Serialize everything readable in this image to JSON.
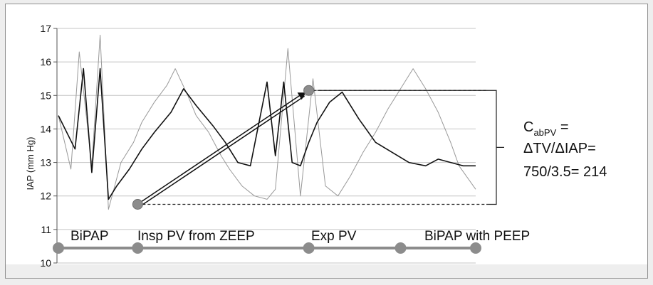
{
  "chart_data": {
    "type": "line",
    "ylabel": "IAP (mm Hg)",
    "ylim": [
      10,
      17
    ],
    "yticks": [
      10,
      11,
      12,
      13,
      14,
      15,
      16,
      17
    ],
    "grid": true,
    "series": [
      {
        "style": "raw-oscillating-grey",
        "x": [
          0.0,
          0.03,
          0.05,
          0.08,
          0.1,
          0.12,
          0.15,
          0.18,
          0.2,
          0.23,
          0.26,
          0.28,
          0.31,
          0.33,
          0.36,
          0.39,
          0.41,
          0.44,
          0.47,
          0.5,
          0.52,
          0.55,
          0.58,
          0.61,
          0.64,
          0.67,
          0.7,
          0.73,
          0.76,
          0.79,
          0.82,
          0.85,
          0.88,
          0.91,
          0.94,
          0.96,
          1.0
        ],
        "y": [
          14.4,
          12.8,
          16.3,
          12.9,
          16.8,
          11.6,
          13.0,
          13.6,
          14.2,
          14.8,
          15.3,
          15.8,
          15.0,
          14.4,
          13.9,
          13.2,
          12.8,
          12.3,
          12.0,
          11.9,
          12.2,
          16.4,
          12.0,
          15.5,
          12.3,
          12.0,
          12.6,
          13.3,
          13.9,
          14.6,
          15.2,
          15.8,
          15.2,
          14.5,
          13.6,
          12.9,
          12.2
        ]
      },
      {
        "style": "smoothed-black",
        "x": [
          0.0,
          0.04,
          0.06,
          0.08,
          0.1,
          0.12,
          0.14,
          0.17,
          0.2,
          0.23,
          0.27,
          0.3,
          0.33,
          0.37,
          0.4,
          0.43,
          0.46,
          0.5,
          0.52,
          0.54,
          0.56,
          0.58,
          0.6,
          0.62,
          0.65,
          0.68,
          0.72,
          0.76,
          0.8,
          0.84,
          0.88,
          0.91,
          0.94,
          0.97,
          1.0
        ],
        "y": [
          14.4,
          13.4,
          15.8,
          12.7,
          15.8,
          11.9,
          12.3,
          12.8,
          13.4,
          13.9,
          14.5,
          15.2,
          14.7,
          14.1,
          13.6,
          13.0,
          12.9,
          15.4,
          13.2,
          15.4,
          13.0,
          12.9,
          13.6,
          14.2,
          14.8,
          15.1,
          14.3,
          13.6,
          13.3,
          13.0,
          12.9,
          13.1,
          13.0,
          12.9,
          12.9
        ]
      }
    ],
    "key_points": [
      {
        "x": 0.19,
        "y": 11.75
      },
      {
        "x": 0.6,
        "y": 15.15
      }
    ],
    "phases": [
      {
        "label": "BiPAP"
      },
      {
        "label": "Insp PV from ZEEP"
      },
      {
        "label": "Exp PV"
      },
      {
        "label": "BiPAP with PEEP"
      }
    ],
    "phase_markers_x": [
      0.0,
      0.19,
      0.6,
      0.82,
      1.0
    ],
    "annotation": {
      "line1_main": "C",
      "line1_sub": "abPV",
      "line1_tail": " =",
      "line2": "ΔTV/ΔIAP=",
      "line3": "750/3.5= 214"
    },
    "colors": {
      "panel_background": "#eeeeee",
      "plot_background": "#ffffff",
      "gridline": "#c4c4c4",
      "raw_trace": "#999999",
      "smoothed_trace": "#111111",
      "marker": "#8c8c8c",
      "phase_bar": "#8c8c8c"
    }
  }
}
